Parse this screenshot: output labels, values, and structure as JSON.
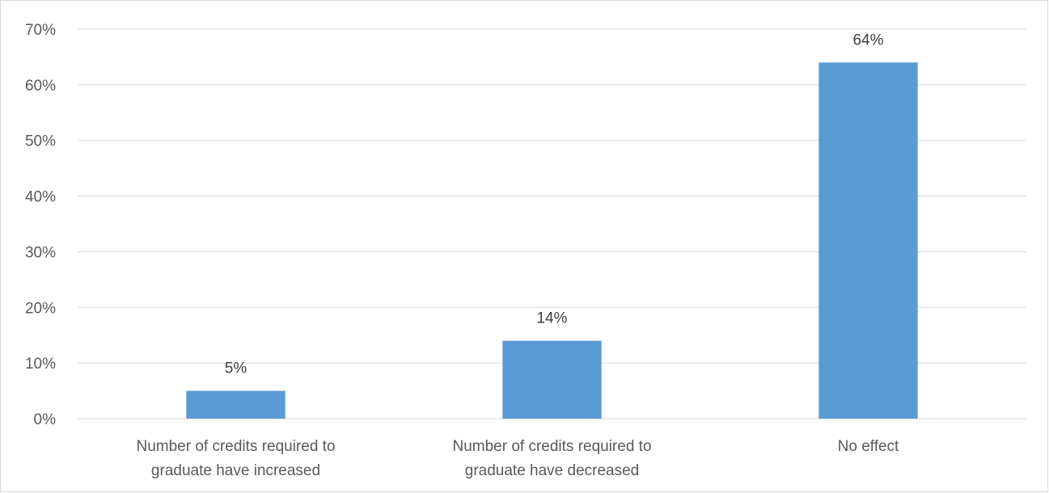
{
  "chart_data": {
    "type": "bar",
    "title": "",
    "xlabel": "",
    "ylabel": "",
    "categories": [
      [
        "Number of credits required to",
        "graduate have increased"
      ],
      [
        "Number of credits required to",
        "graduate have decreased"
      ],
      [
        "No effect"
      ]
    ],
    "values": [
      5,
      14,
      64
    ],
    "data_labels": [
      "5%",
      "14%",
      "64%"
    ],
    "ylim": [
      0,
      70
    ],
    "y_ticks": [
      0,
      10,
      20,
      30,
      40,
      50,
      60,
      70
    ],
    "y_tick_labels": [
      "0%",
      "10%",
      "20%",
      "30%",
      "40%",
      "50%",
      "60%",
      "70%"
    ],
    "grid": true,
    "legend": "none",
    "colors": {
      "bar": "#5b9bd5",
      "grid": "#d9d9d9",
      "axis_text": "#595959",
      "data_label_text": "#404040"
    }
  }
}
